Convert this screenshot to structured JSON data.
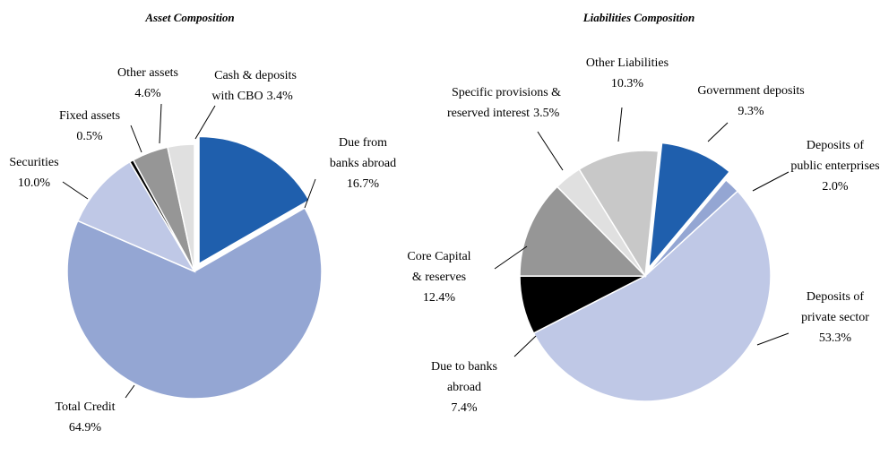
{
  "chart_data": [
    {
      "type": "pie",
      "title": "Asset Composition",
      "categories": [
        "Due from banks abroad",
        "Total Credit",
        "Securities",
        "Fixed assets",
        "Other assets",
        "Cash & deposits with CBO"
      ],
      "values": [
        16.7,
        64.9,
        10.0,
        0.5,
        4.6,
        3.4
      ],
      "value_labels": [
        "16.7%",
        "64.9%",
        "10.0%",
        "0.5%",
        "4.6%",
        "3.4%"
      ],
      "colors": [
        "#1f5fad",
        "#94a6d3",
        "#bfc8e6",
        "#000000",
        "#969696",
        "#e0e0e0"
      ]
    },
    {
      "type": "pie",
      "title": "Liabilities Composition",
      "categories": [
        "Government deposits",
        "Deposits of public enterprises",
        "Deposits of private sector",
        "Due to banks abroad",
        "Core Capital & reserves",
        "Specific provisions & reserved interest",
        "Other Liabilities"
      ],
      "values": [
        9.3,
        2.0,
        53.3,
        7.4,
        12.4,
        3.5,
        10.3
      ],
      "value_labels": [
        "9.3%",
        "2.0%",
        "53.3%",
        "7.4%",
        "12.4%",
        "3.5%",
        "10.3%"
      ],
      "colors": [
        "#1f5fad",
        "#94a6d3",
        "#bfc8e6",
        "#000000",
        "#969696",
        "#e0e0e0",
        "#c8c8c8"
      ]
    }
  ]
}
